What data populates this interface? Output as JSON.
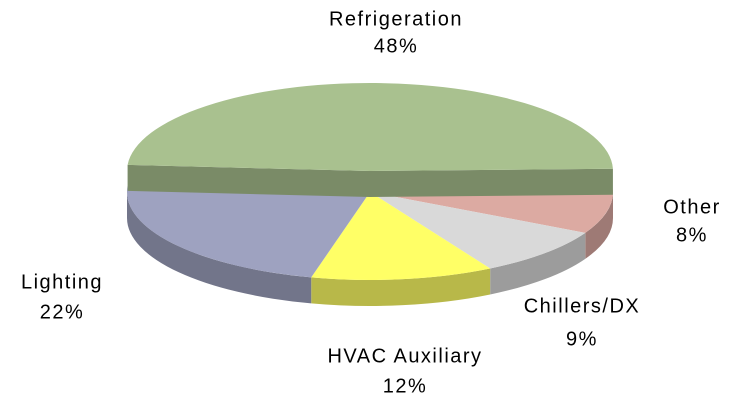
{
  "chart_data": {
    "type": "pie3d",
    "categories": [
      "Refrigeration",
      "Other",
      "Chillers/DX",
      "HVAC Auxiliary",
      "Lighting"
    ],
    "values": [
      48,
      8,
      9,
      12,
      22
    ],
    "value_labels": [
      "48%",
      "8%",
      "9%",
      "12%",
      "22%"
    ],
    "colors": [
      "#a9c18f",
      "#dcaaa2",
      "#d9d9d9",
      "#ffff66",
      "#9ea2c0"
    ]
  }
}
